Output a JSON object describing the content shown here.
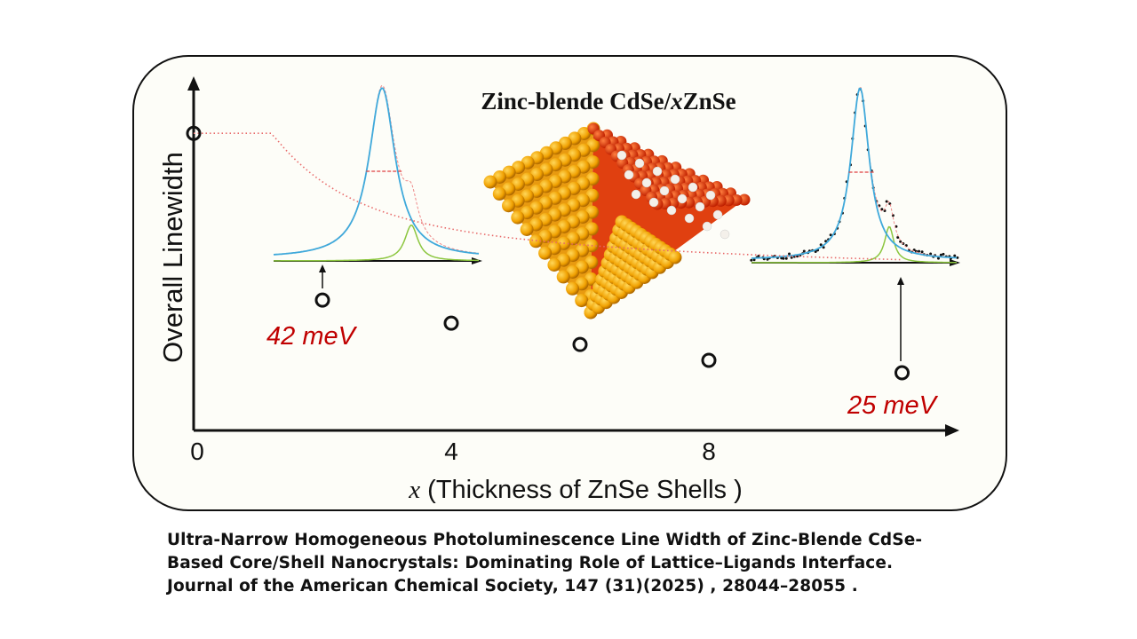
{
  "chart_data": {
    "type": "scatter",
    "title": "Zinc-blende CdSe/xZnSe",
    "title_parts": {
      "prefix": "Zinc-blende CdSe/",
      "italic": "x",
      "suffix": "ZnSe"
    },
    "xlabel": "(Thickness of ZnSe Shells )",
    "xlabel_var": "x",
    "ylabel": "Overall Linewidth",
    "x_ticks": [
      "0",
      "4",
      "8"
    ],
    "xlim": [
      0,
      12
    ],
    "ylim": [
      11.5,
      93.5
    ],
    "grid": false,
    "series": [
      {
        "name": "linewidth",
        "x": [
          0,
          2,
          4,
          6,
          8,
          11
        ],
        "y": [
          81,
          42,
          36.6,
          31.6,
          27.9,
          25
        ],
        "marker": "open-circle",
        "fit": "dotted-red-decay"
      }
    ],
    "annotations": [
      {
        "text": "42 meV",
        "x": 2,
        "y": 42
      },
      {
        "text": "25 meV",
        "x": 11,
        "y": 25
      }
    ],
    "insets": [
      {
        "name": "PL spectrum at x=2",
        "points_to_x": 2,
        "main_peak_width": 1.0,
        "shoulder_amplitude": 0.2
      },
      {
        "name": "PL spectrum at x=11",
        "points_to_x": 11,
        "main_peak_width": 0.7,
        "shoulder_amplitude": 0.2
      }
    ],
    "colors": {
      "points": "#111111",
      "fit": "#e86a6a",
      "annotation": "#c00000",
      "fit_main": "#3fa9db",
      "fit_shoulder": "#8cc63f",
      "fwhm": "#e04040"
    }
  },
  "caption": {
    "lines": [
      "Ultra-Narrow Homogeneous Photoluminescence Line Width of Zinc-Blende CdSe-",
      "Based Core/Shell Nanocrystals: Dominating Role of Lattice–Ligands Interface.",
      "Journal of the American Chemical Society, 147 (31)(2025) , 28044–28055 ."
    ]
  }
}
